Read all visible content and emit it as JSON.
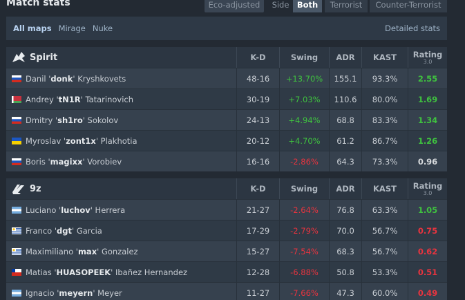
{
  "header": {
    "title": "Match stats",
    "eco": "Eco-adjusted",
    "side_label": "Side",
    "sides": [
      "Both",
      "Terrorist",
      "Counter-Terrorist"
    ],
    "active_side": 0
  },
  "maps": {
    "items": [
      "All maps",
      "Mirage",
      "Nuke"
    ],
    "active": 0,
    "detailed": "Detailed stats"
  },
  "columns": [
    "K-D",
    "Swing",
    "ADR",
    "KAST",
    "Rating"
  ],
  "rating_version": "3.0",
  "teams": [
    {
      "name": "Spirit",
      "players": [
        {
          "flag": "ru",
          "pre": "Danil '",
          "nick": "donk",
          "post": "' Kryshkovets",
          "kd": "48-16",
          "swing": "+13.70%",
          "adr": "155.1",
          "kast": "93.3%",
          "rating": "2.55",
          "swing_color": "#3fc23f",
          "rating_color": "#3fc23f"
        },
        {
          "flag": "by",
          "pre": "Andrey '",
          "nick": "tN1R",
          "post": "' Tatarinovich",
          "kd": "30-19",
          "swing": "+7.03%",
          "adr": "110.6",
          "kast": "80.0%",
          "rating": "1.69",
          "swing_color": "#3fc23f",
          "rating_color": "#3fc23f"
        },
        {
          "flag": "ru",
          "pre": "Dmitry '",
          "nick": "sh1ro",
          "post": "' Sokolov",
          "kd": "24-13",
          "swing": "+4.94%",
          "adr": "68.8",
          "kast": "83.3%",
          "rating": "1.34",
          "swing_color": "#3fc23f",
          "rating_color": "#3fc23f"
        },
        {
          "flag": "ua",
          "pre": "Myroslav '",
          "nick": "zont1x",
          "post": "' Plakhotia",
          "kd": "20-12",
          "swing": "+4.70%",
          "adr": "61.2",
          "kast": "86.7%",
          "rating": "1.26",
          "swing_color": "#3fc23f",
          "rating_color": "#3fc23f"
        },
        {
          "flag": "ru",
          "pre": "Boris '",
          "nick": "magixx",
          "post": "' Vorobiev",
          "kd": "16-16",
          "swing": "-2.86%",
          "adr": "64.3",
          "kast": "73.3%",
          "rating": "0.96",
          "swing_color": "#e8343f",
          "rating_color": "#d6d9dc"
        }
      ]
    },
    {
      "name": "9z",
      "players": [
        {
          "flag": "ar",
          "pre": "Luciano '",
          "nick": "luchov",
          "post": "' Herrera",
          "kd": "21-27",
          "swing": "-2.64%",
          "adr": "76.8",
          "kast": "63.3%",
          "rating": "1.05",
          "swing_color": "#e8343f",
          "rating_color": "#3fc23f"
        },
        {
          "flag": "uy",
          "pre": "Franco '",
          "nick": "dgt",
          "post": "' Garcia",
          "kd": "17-29",
          "swing": "-2.79%",
          "adr": "70.0",
          "kast": "56.7%",
          "rating": "0.75",
          "swing_color": "#e8343f",
          "rating_color": "#e8343f"
        },
        {
          "flag": "uy",
          "pre": "Maximiliano '",
          "nick": "max",
          "post": "' Gonzalez",
          "kd": "15-27",
          "swing": "-7.54%",
          "adr": "68.3",
          "kast": "56.7%",
          "rating": "0.62",
          "swing_color": "#e8343f",
          "rating_color": "#e8343f"
        },
        {
          "flag": "cl",
          "pre": "Matias '",
          "nick": "HUASOPEEK",
          "post": "' Ibañez Hernandez",
          "kd": "12-28",
          "swing": "-6.88%",
          "adr": "50.8",
          "kast": "53.3%",
          "rating": "0.51",
          "swing_color": "#e8343f",
          "rating_color": "#e8343f"
        },
        {
          "flag": "ar",
          "pre": "Ignacio '",
          "nick": "meyern",
          "post": "' Meyer",
          "kd": "11-27",
          "swing": "-7.66%",
          "adr": "47.3",
          "kast": "60.0%",
          "rating": "0.49",
          "swing_color": "#e8343f",
          "rating_color": "#e8343f"
        }
      ]
    }
  ]
}
